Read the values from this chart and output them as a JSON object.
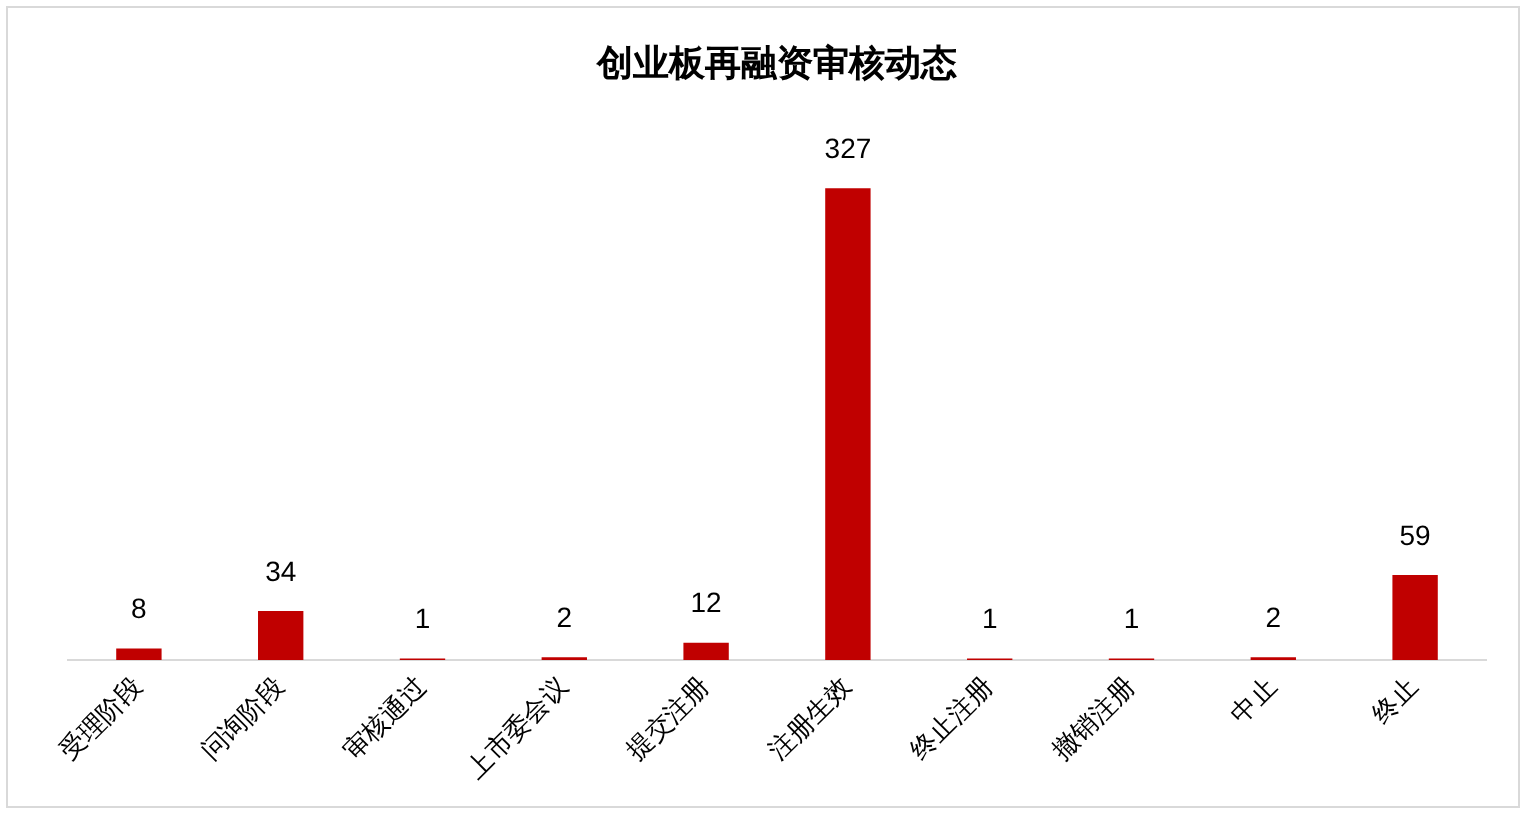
{
  "chart_data": {
    "type": "bar",
    "title": "创业板再融资审核动态",
    "categories": [
      "受理阶段",
      "问询阶段",
      "审核通过",
      "上市委会议",
      "提交注册",
      "注册生效",
      "终止注册",
      "撤销注册",
      "中止",
      "终止"
    ],
    "values": [
      8,
      34,
      1,
      2,
      12,
      327,
      1,
      1,
      2,
      59
    ],
    "color": "#c00000",
    "data_labels": true,
    "legend": false,
    "grid": false
  }
}
